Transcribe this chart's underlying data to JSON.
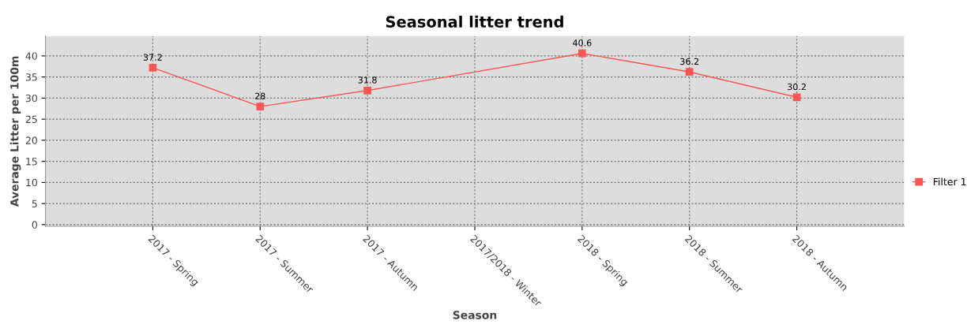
{
  "chart_data": {
    "type": "line",
    "title": "Seasonal litter trend",
    "xlabel": "Season",
    "ylabel": "Average Litter per 100m",
    "categories": [
      "2017 - Spring",
      "2017 - Summer",
      "2017 - Autumn",
      "2017/2018 - Winter",
      "2018 - Spring",
      "2018 - Summer",
      "2018 - Autumn"
    ],
    "series": [
      {
        "name": "Filter 1",
        "color": "#ff5555",
        "values": [
          37.2,
          28,
          31.8,
          null,
          40.6,
          36.2,
          30.2
        ]
      }
    ],
    "ylim": [
      -0.4,
      44.7
    ],
    "yticks": [
      0,
      5,
      10,
      15,
      20,
      25,
      30,
      35,
      40
    ],
    "grid": true,
    "legend": "right",
    "marker": "square",
    "line_style": "solid",
    "data_labels": true
  }
}
